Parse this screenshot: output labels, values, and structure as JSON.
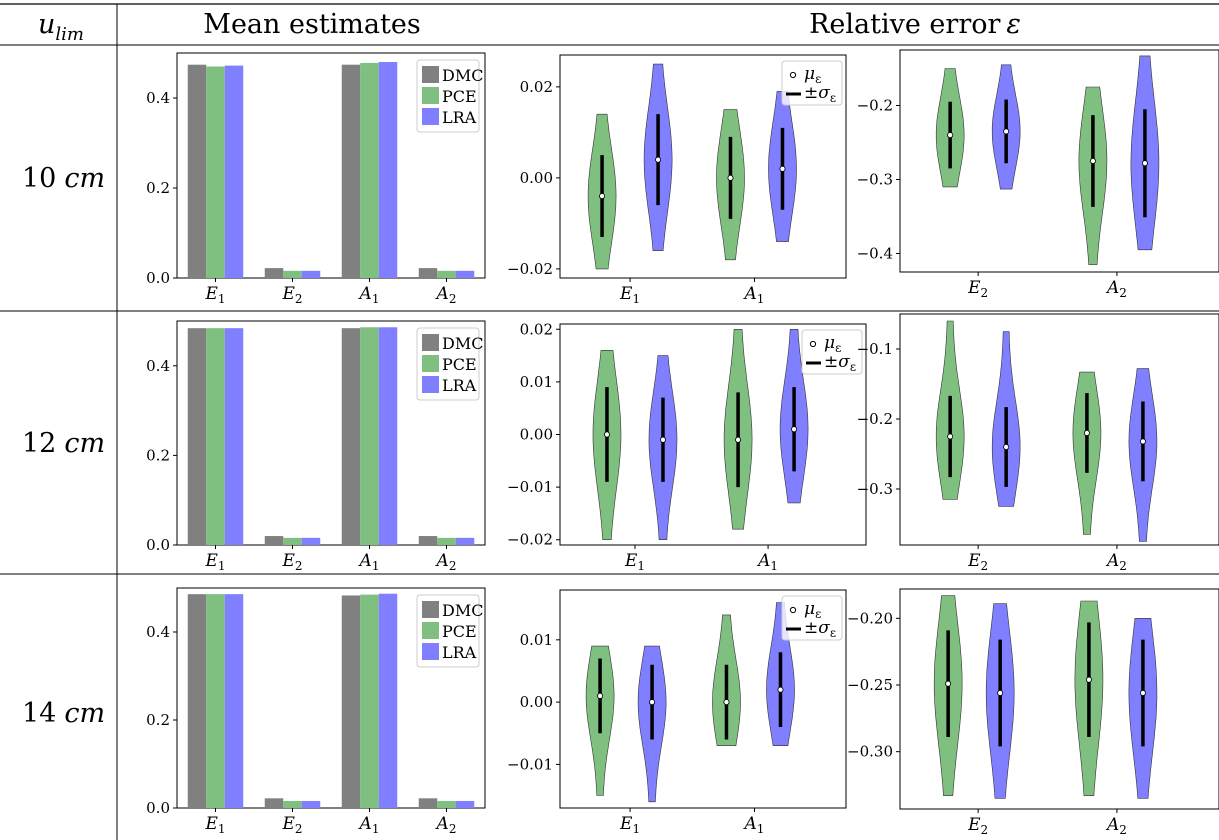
{
  "table": {
    "col_header_row": "u",
    "col_header_row_sub": "lim",
    "col_header_mean": "Mean estimates",
    "col_header_rel": "Relative error",
    "col_header_rel_symbol": "ε"
  },
  "rows": [
    {
      "value": "10",
      "unit": "cm"
    },
    {
      "value": "12",
      "unit": "cm"
    },
    {
      "value": "14",
      "unit": "cm"
    }
  ],
  "legend_violin": {
    "mu": "μ",
    "mu_sub": "ε",
    "sigma": "±σ",
    "sigma_sub": "ε"
  },
  "colors": {
    "DMC": "#808080",
    "PCE": "#7fbf7f",
    "LRA": "#7f7fff"
  },
  "chart_data": [
    {
      "type": "bar",
      "row": "10 cm",
      "categories": [
        "E1",
        "E2",
        "A1",
        "A2"
      ],
      "series": [
        {
          "name": "DMC",
          "values": [
            0.474,
            0.022,
            0.474,
            0.022
          ]
        },
        {
          "name": "PCE",
          "values": [
            0.47,
            0.016,
            0.478,
            0.016
          ]
        },
        {
          "name": "LRA",
          "values": [
            0.472,
            0.016,
            0.48,
            0.016
          ]
        }
      ],
      "ylim": [
        0,
        0.5
      ],
      "yticks": [
        "0.0",
        "0.2",
        "0.4"
      ]
    },
    {
      "type": "violin",
      "row": "10 cm",
      "categories": [
        "E1",
        "A1"
      ],
      "series": [
        {
          "name": "PCE",
          "mean": [
            -0.004,
            0.0
          ],
          "sd": [
            0.009,
            0.009
          ],
          "min": [
            -0.02,
            -0.018
          ],
          "max": [
            0.014,
            0.015
          ]
        },
        {
          "name": "LRA",
          "mean": [
            0.004,
            0.002
          ],
          "sd": [
            0.01,
            0.009
          ],
          "min": [
            -0.016,
            -0.014
          ],
          "max": [
            0.025,
            0.019
          ]
        }
      ],
      "ylim": [
        -0.022,
        0.027
      ],
      "yticks": [
        "−0.02",
        "0.00",
        "0.02"
      ]
    },
    {
      "type": "violin",
      "row": "10 cm",
      "categories": [
        "E2",
        "A2"
      ],
      "series": [
        {
          "name": "PCE",
          "mean": [
            -0.24,
            -0.275
          ],
          "sd": [
            0.045,
            0.062
          ],
          "min": [
            -0.31,
            -0.415
          ],
          "max": [
            -0.15,
            -0.175
          ]
        },
        {
          "name": "LRA",
          "mean": [
            -0.235,
            -0.278
          ],
          "sd": [
            0.043,
            0.073
          ],
          "min": [
            -0.313,
            -0.395
          ],
          "max": [
            -0.145,
            -0.133
          ]
        }
      ],
      "ylim": [
        -0.425,
        -0.125
      ],
      "yticks": [
        "−0.4",
        "−0.3",
        "−0.2"
      ]
    },
    {
      "type": "bar",
      "row": "12 cm",
      "categories": [
        "E1",
        "E2",
        "A1",
        "A2"
      ],
      "series": [
        {
          "name": "DMC",
          "values": [
            0.484,
            0.02,
            0.484,
            0.02
          ]
        },
        {
          "name": "PCE",
          "values": [
            0.484,
            0.016,
            0.486,
            0.016
          ]
        },
        {
          "name": "LRA",
          "values": [
            0.484,
            0.016,
            0.486,
            0.016
          ]
        }
      ],
      "ylim": [
        0,
        0.5
      ],
      "yticks": [
        "0.0",
        "0.2",
        "0.4"
      ]
    },
    {
      "type": "violin",
      "row": "12 cm",
      "categories": [
        "E1",
        "A1"
      ],
      "series": [
        {
          "name": "PCE",
          "mean": [
            0.0,
            -0.001
          ],
          "sd": [
            0.009,
            0.009
          ],
          "min": [
            -0.02,
            -0.018
          ],
          "max": [
            0.016,
            0.02
          ]
        },
        {
          "name": "LRA",
          "mean": [
            -0.001,
            0.001
          ],
          "sd": [
            0.008,
            0.008
          ],
          "min": [
            -0.02,
            -0.013
          ],
          "max": [
            0.015,
            0.02
          ]
        }
      ],
      "ylim": [
        -0.021,
        0.021
      ],
      "yticks": [
        "−0.02",
        "−0.01",
        "0.00",
        "0.01",
        "0.02"
      ]
    },
    {
      "type": "violin",
      "row": "12 cm",
      "categories": [
        "E2",
        "A2"
      ],
      "series": [
        {
          "name": "PCE",
          "mean": [
            -0.225,
            -0.22
          ],
          "sd": [
            0.058,
            0.057
          ],
          "min": [
            -0.315,
            -0.365
          ],
          "max": [
            -0.06,
            -0.133
          ]
        },
        {
          "name": "LRA",
          "mean": [
            -0.24,
            -0.232
          ],
          "sd": [
            0.057,
            0.057
          ],
          "min": [
            -0.325,
            -0.375
          ],
          "max": [
            -0.075,
            -0.128
          ]
        }
      ],
      "ylim": [
        -0.38,
        -0.05
      ],
      "yticks": [
        "−0.3",
        "−0.2",
        "−0.1"
      ]
    },
    {
      "type": "bar",
      "row": "14 cm",
      "categories": [
        "E1",
        "E2",
        "A1",
        "A2"
      ],
      "series": [
        {
          "name": "DMC",
          "values": [
            0.486,
            0.022,
            0.483,
            0.022
          ]
        },
        {
          "name": "PCE",
          "values": [
            0.486,
            0.016,
            0.485,
            0.016
          ]
        },
        {
          "name": "LRA",
          "values": [
            0.486,
            0.016,
            0.487,
            0.016
          ]
        }
      ],
      "ylim": [
        0,
        0.5
      ],
      "yticks": [
        "0.0",
        "0.2",
        "0.4"
      ]
    },
    {
      "type": "violin",
      "row": "14 cm",
      "categories": [
        "E1",
        "A1"
      ],
      "series": [
        {
          "name": "PCE",
          "mean": [
            0.001,
            0.0
          ],
          "sd": [
            0.006,
            0.006
          ],
          "min": [
            -0.015,
            -0.007
          ],
          "max": [
            0.009,
            0.014
          ]
        },
        {
          "name": "LRA",
          "mean": [
            0.0,
            0.002
          ],
          "sd": [
            0.006,
            0.006
          ],
          "min": [
            -0.016,
            -0.007
          ],
          "max": [
            0.009,
            0.016
          ]
        }
      ],
      "ylim": [
        -0.017,
        0.018
      ],
      "yticks": [
        "−0.01",
        "0.00",
        "0.01"
      ]
    },
    {
      "type": "violin",
      "row": "14 cm",
      "categories": [
        "E2",
        "A2"
      ],
      "series": [
        {
          "name": "PCE",
          "mean": [
            -0.249,
            -0.246
          ],
          "sd": [
            0.04,
            0.043
          ],
          "min": [
            -0.333,
            -0.333
          ],
          "max": [
            -0.183,
            -0.187
          ]
        },
        {
          "name": "LRA",
          "mean": [
            -0.256,
            -0.256
          ],
          "sd": [
            0.04,
            0.04
          ],
          "min": [
            -0.335,
            -0.335
          ],
          "max": [
            -0.189,
            -0.2
          ]
        }
      ],
      "ylim": [
        -0.343,
        -0.178
      ],
      "yticks": [
        "−0.30",
        "−0.25",
        "−0.20"
      ]
    }
  ]
}
